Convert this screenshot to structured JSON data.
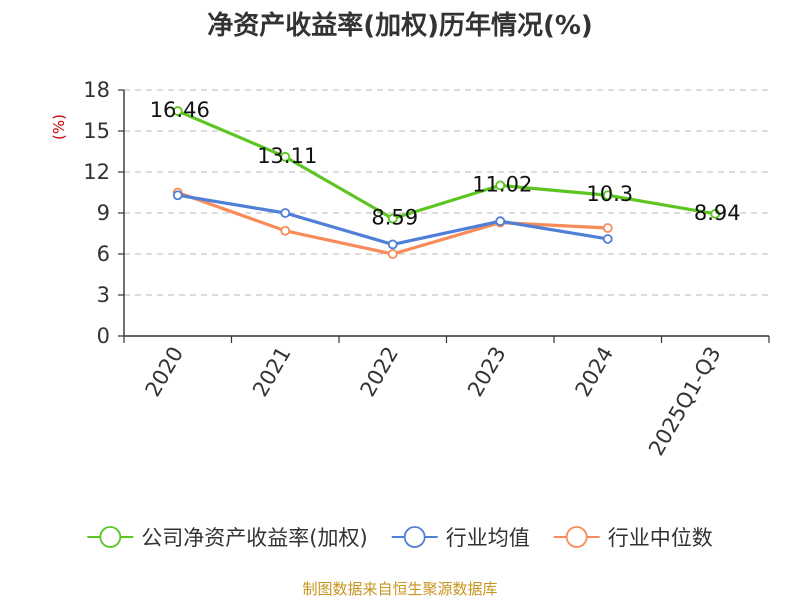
{
  "chart_data": {
    "type": "line",
    "title": "净资产收益率(加权)历年情况(%)",
    "ylabel": "(%)",
    "xlabel": "",
    "categories": [
      "2020",
      "2021",
      "2022",
      "2023",
      "2024",
      "2025Q1-Q3"
    ],
    "ylim": [
      0,
      18
    ],
    "yticks": [
      0,
      3,
      6,
      9,
      12,
      15,
      18
    ],
    "grid": true,
    "legend_position": "bottom",
    "series": [
      {
        "name": "公司净资产收益率(加权)",
        "color": "#5cc521",
        "values": [
          16.46,
          13.11,
          8.59,
          11.02,
          10.3,
          8.94
        ],
        "labels": [
          "16.46",
          "13.11",
          "8.59",
          "11.02",
          "10.3",
          "8.94"
        ]
      },
      {
        "name": "行业均值",
        "color": "#4f7fd6",
        "values": [
          10.3,
          9.0,
          6.7,
          8.4,
          7.1,
          null
        ]
      },
      {
        "name": "行业中位数",
        "color": "#f78c5a",
        "values": [
          10.5,
          7.7,
          6.0,
          8.3,
          7.9,
          null
        ]
      }
    ],
    "source": "制图数据来自恒生聚源数据库"
  }
}
